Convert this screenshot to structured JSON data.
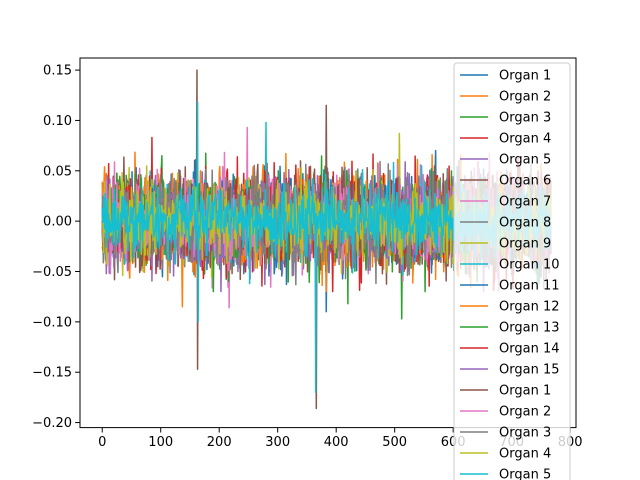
{
  "chart_data": {
    "type": "line",
    "title": "",
    "xlabel": "",
    "ylabel": "",
    "xlim": [
      -38,
      810
    ],
    "ylim": [
      -0.205,
      0.162
    ],
    "x_ticks": [
      0,
      100,
      200,
      300,
      400,
      500,
      600,
      700,
      800
    ],
    "y_ticks": [
      -0.2,
      -0.15,
      -0.1,
      -0.05,
      0.0,
      0.05,
      0.1,
      0.15
    ],
    "x_tick_labels": [
      "0",
      "100",
      "200",
      "300",
      "400",
      "500",
      "600",
      "700",
      "800"
    ],
    "y_tick_labels": [
      "−0.20",
      "−0.15",
      "−0.10",
      "−0.05",
      "0.00",
      "0.05",
      "0.10",
      "0.15"
    ],
    "grid": false,
    "legend_location": "upper right",
    "n_points": 768,
    "series": [
      {
        "name": "Organ 1",
        "color": "#1f77b4",
        "amplitude": 0.02
      },
      {
        "name": "Organ 2",
        "color": "#ff7f0e",
        "amplitude": 0.022
      },
      {
        "name": "Organ 3",
        "color": "#2ca02c",
        "amplitude": 0.022
      },
      {
        "name": "Organ 4",
        "color": "#d62728",
        "amplitude": 0.022
      },
      {
        "name": "Organ 5",
        "color": "#9467bd",
        "amplitude": 0.022
      },
      {
        "name": "Organ 6",
        "color": "#8c564b",
        "amplitude": 0.021
      },
      {
        "name": "Organ 7",
        "color": "#e377c2",
        "amplitude": 0.021
      },
      {
        "name": "Organ 8",
        "color": "#7f7f7f",
        "amplitude": 0.021
      },
      {
        "name": "Organ 9",
        "color": "#bcbd22",
        "amplitude": 0.02
      },
      {
        "name": "Organ 10",
        "color": "#17becf",
        "amplitude": 0.018
      },
      {
        "name": "Organ 11",
        "color": "#1f77b4",
        "amplitude": 0.02
      },
      {
        "name": "Organ 12",
        "color": "#ff7f0e",
        "amplitude": 0.02
      },
      {
        "name": "Organ 13",
        "color": "#2ca02c",
        "amplitude": 0.02
      },
      {
        "name": "Organ 14",
        "color": "#d62728",
        "amplitude": 0.02
      },
      {
        "name": "Organ 15",
        "color": "#9467bd",
        "amplitude": 0.02
      },
      {
        "name": "Organ 1",
        "color": "#8c564b",
        "amplitude": 0.02
      },
      {
        "name": "Organ 2",
        "color": "#e377c2",
        "amplitude": 0.02
      },
      {
        "name": "Organ 3",
        "color": "#7f7f7f",
        "amplitude": 0.02
      },
      {
        "name": "Organ 4",
        "color": "#bcbd22",
        "amplitude": 0.018
      },
      {
        "name": "Organ 5",
        "color": "#17becf",
        "amplitude": 0.016
      }
    ],
    "spikes": [
      {
        "series": 5,
        "x": 162,
        "y": 0.15
      },
      {
        "series": 5,
        "x": 163,
        "y": -0.147
      },
      {
        "series": 19,
        "x": 163,
        "y": 0.118
      },
      {
        "series": 19,
        "x": 164,
        "y": -0.1
      },
      {
        "series": 15,
        "x": 366,
        "y": -0.186
      },
      {
        "series": 19,
        "x": 365,
        "y": -0.17
      },
      {
        "series": 15,
        "x": 383,
        "y": 0.115
      },
      {
        "series": 10,
        "x": 383,
        "y": -0.09
      },
      {
        "series": 3,
        "x": 85,
        "y": 0.083
      },
      {
        "series": 2,
        "x": 512,
        "y": -0.097
      },
      {
        "series": 9,
        "x": 280,
        "y": 0.098
      },
      {
        "series": 6,
        "x": 248,
        "y": 0.093
      },
      {
        "series": 8,
        "x": 508,
        "y": 0.087
      },
      {
        "series": 1,
        "x": 137,
        "y": -0.085
      },
      {
        "series": 6,
        "x": 217,
        "y": -0.086
      },
      {
        "series": 2,
        "x": 420,
        "y": -0.082
      }
    ]
  }
}
